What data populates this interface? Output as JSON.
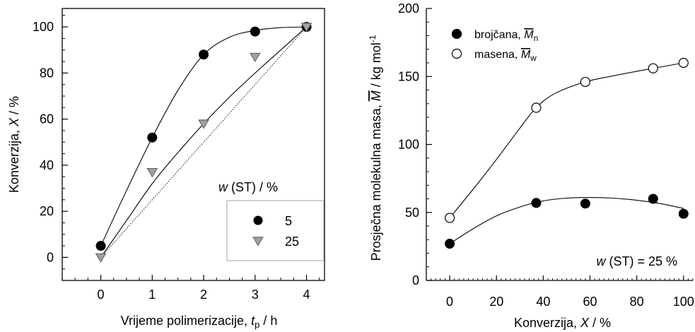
{
  "chart_data": [
    {
      "type": "scatter",
      "xlabel": {
        "prefix": "Vrijeme polimerizacije, ",
        "sym": "t",
        "sub": "p",
        "suffix": " / h"
      },
      "ylabel": {
        "prefix": "Konverzija, ",
        "sym": "X",
        "suffix": " / %"
      },
      "xlim": [
        -0.75,
        4.35
      ],
      "ylim": [
        -10,
        108
      ],
      "xticks": [
        0,
        1,
        2,
        3,
        4
      ],
      "yticks": [
        0,
        20,
        40,
        60,
        80,
        100
      ],
      "legend": {
        "title_sym": "w",
        "title_rest": " (ST) / %",
        "position": "bottom-right",
        "entries": [
          "5",
          "25"
        ]
      },
      "series": [
        {
          "name": "5",
          "marker": "filled-circle",
          "color": "#000000",
          "x": [
            0,
            1,
            2,
            3,
            4
          ],
          "y": [
            5,
            52,
            88,
            98,
            100
          ],
          "fit": [
            [
              0,
              5
            ],
            [
              0.5,
              29
            ],
            [
              1,
              52
            ],
            [
              1.5,
              72.5
            ],
            [
              2,
              88
            ],
            [
              2.5,
              95.5
            ],
            [
              3,
              98.5
            ],
            [
              3.5,
              99.7
            ],
            [
              4,
              100
            ]
          ]
        },
        {
          "name": "25",
          "marker": "gray-triangle-down",
          "color": "#a0a0a0",
          "x": [
            0,
            1,
            2,
            3,
            4
          ],
          "y": [
            0,
            37,
            58,
            87,
            100
          ],
          "fit": [
            [
              0,
              0
            ],
            [
              0.5,
              16
            ],
            [
              1,
              32
            ],
            [
              1.5,
              45.5
            ],
            [
              2,
              58
            ],
            [
              2.5,
              69.5
            ],
            [
              3,
              80
            ],
            [
              3.5,
              90
            ],
            [
              4,
              100
            ]
          ]
        }
      ],
      "reference_line": [
        [
          0,
          0
        ],
        [
          4,
          100
        ]
      ]
    },
    {
      "type": "scatter",
      "xlabel": {
        "prefix": "Konverzija, ",
        "sym": "X",
        "suffix": " / %"
      },
      "ylabel": {
        "prefix": "Prosječna molekulna masa, ",
        "sym": "M",
        "suffix": " / kg mol",
        "sup": "-1"
      },
      "xlim": [
        -10,
        104
      ],
      "ylim": [
        0,
        200
      ],
      "xticks": [
        0,
        20,
        40,
        60,
        80,
        100
      ],
      "yticks": [
        0,
        50,
        100,
        150,
        200
      ],
      "legend": {
        "position": "top-left",
        "entries": [
          {
            "label": "brojčana, ",
            "sym": "M",
            "sub": "n",
            "marker": "filled-circle"
          },
          {
            "label": "masena, ",
            "sym": "M",
            "sub": "w",
            "marker": "open-circle"
          }
        ]
      },
      "annotation": {
        "sym": "w",
        "rest": " (ST) = 25 %"
      },
      "series": [
        {
          "name": "brojčana",
          "marker": "filled-circle",
          "x": [
            0,
            37,
            58,
            87,
            100
          ],
          "y": [
            27,
            57,
            56.5,
            60,
            49
          ],
          "fit": [
            [
              0,
              27
            ],
            [
              10,
              38
            ],
            [
              20,
              47.5
            ],
            [
              30,
              54
            ],
            [
              40,
              58.5
            ],
            [
              50,
              60.5
            ],
            [
              60,
              61
            ],
            [
              70,
              60.5
            ],
            [
              80,
              59
            ],
            [
              90,
              56.5
            ],
            [
              100,
              53
            ]
          ]
        },
        {
          "name": "masena",
          "marker": "open-circle",
          "x": [
            0,
            37,
            58,
            87,
            100
          ],
          "y": [
            46,
            127,
            146,
            156,
            160
          ],
          "fit": [
            [
              0,
              46
            ],
            [
              10,
              67
            ],
            [
              20,
              89
            ],
            [
              30,
              112
            ],
            [
              37,
              127
            ],
            [
              45,
              137.5
            ],
            [
              58,
              146
            ],
            [
              70,
              150.5
            ],
            [
              87,
              156
            ],
            [
              100,
              160
            ]
          ]
        }
      ]
    }
  ]
}
